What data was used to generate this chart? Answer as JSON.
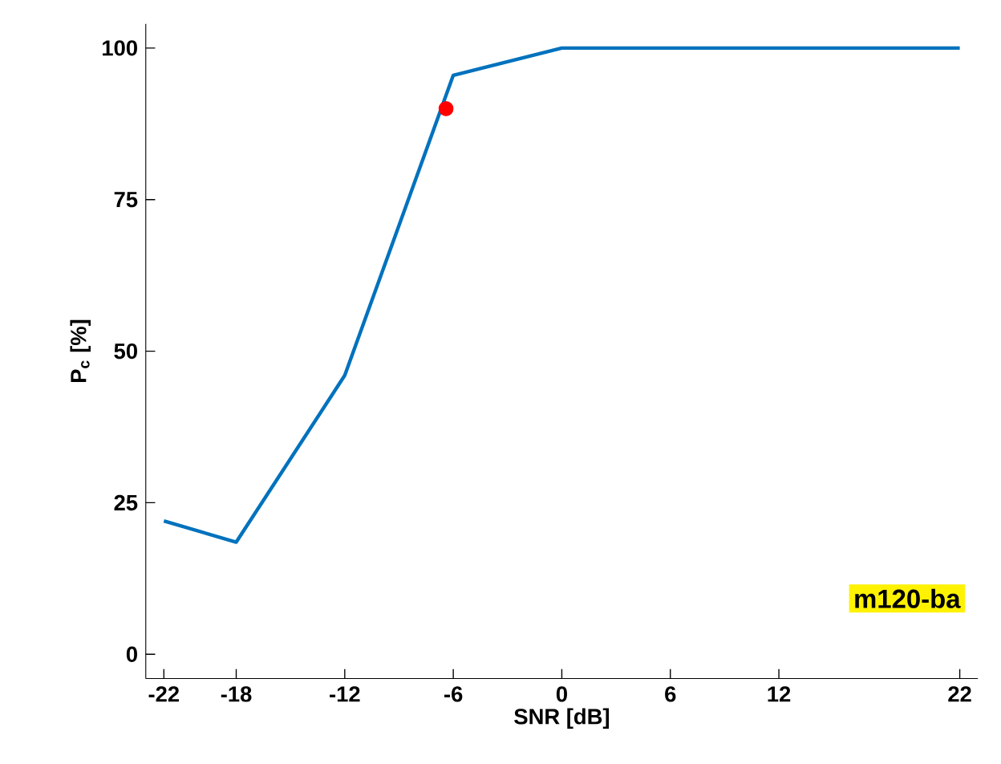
{
  "chart_data": {
    "type": "line",
    "xlabel": "SNR [dB]",
    "ylabel": "P$_{c}$ [%]",
    "xlim": [
      -23,
      23
    ],
    "ylim": [
      -4,
      104
    ],
    "xticks": [
      -22,
      -18,
      -12,
      -6,
      0,
      6,
      12,
      22
    ],
    "yticks": [
      0,
      25,
      50,
      75,
      100
    ],
    "annotations": [
      "m120-ba"
    ],
    "grid": false,
    "series": [
      {
        "color": "#0072bd",
        "x": [
          -22,
          -18,
          -12,
          -6,
          0,
          22
        ],
        "values": [
          22,
          18.5,
          46,
          95.5,
          100,
          100
        ]
      },
      {
        "type": "scatter",
        "color": "#ff0000",
        "x": [
          -6.4
        ],
        "values": [
          90
        ],
        "marker": "circle"
      }
    ]
  }
}
